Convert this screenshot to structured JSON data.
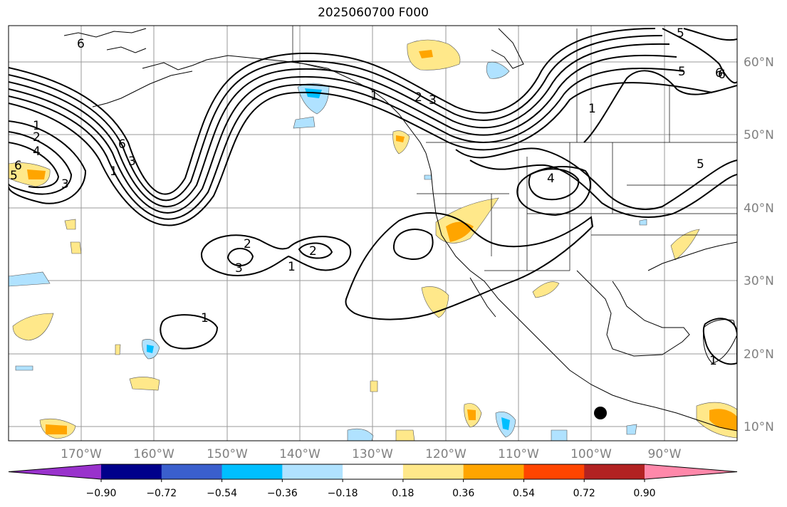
{
  "title": "2025060700 F000",
  "lon_labels": [
    "170°W",
    "160°W",
    "150°W",
    "140°W",
    "130°W",
    "120°W",
    "110°W",
    "100°W",
    "90°W"
  ],
  "lat_labels": [
    "60°N",
    "50°N",
    "40°N",
    "30°N",
    "20°N",
    "10°N"
  ],
  "colorbar": {
    "ticks": [
      "−0.90",
      "−0.72",
      "−0.54",
      "−0.36",
      "−0.18",
      "0.18",
      "0.36",
      "0.54",
      "0.72",
      "0.90"
    ],
    "colors": [
      "#9932CC",
      "#00008B",
      "#3A5FCD",
      "#00BFFF",
      "#B0E2FF",
      "#FFFFFF",
      "#FFE88A",
      "#FFA500",
      "#FF4500",
      "#B22222",
      "#FF88AA"
    ]
  },
  "contour_labels": [
    "6",
    "5",
    "6",
    "1",
    "2",
    "4",
    "6",
    "5",
    "3",
    "6",
    "1",
    "3",
    "2",
    "3",
    "1",
    "2",
    "1",
    "2",
    "3",
    "5",
    "6",
    "1",
    "4",
    "5",
    "1",
    "1"
  ]
}
